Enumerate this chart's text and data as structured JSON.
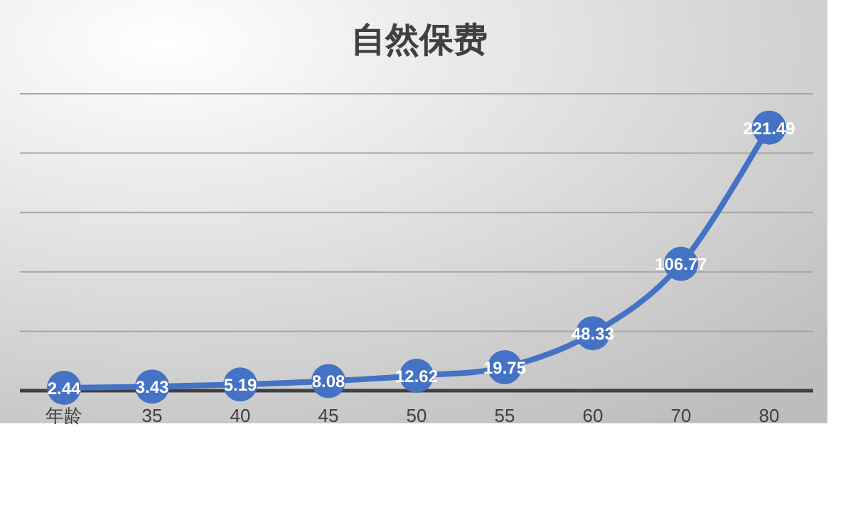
{
  "chart_data": {
    "type": "line",
    "title": "自然保费",
    "categories": [
      "年龄",
      "35",
      "40",
      "45",
      "50",
      "55",
      "60",
      "70",
      "80"
    ],
    "series": [
      {
        "color": "#4472c4",
        "values": [
          2.44,
          3.43,
          5.19,
          8.08,
          12.62,
          19.75,
          48.33,
          106.77,
          221.49
        ]
      }
    ],
    "ylim": [
      0,
      250
    ],
    "yticks": [
      {
        "value": 0,
        "label": null
      },
      {
        "value": 50,
        "label": null
      },
      {
        "value": 100,
        "label": null
      },
      {
        "value": 150,
        "label": null
      },
      {
        "value": 200,
        "label": null
      },
      {
        "value": 250,
        "label": null
      }
    ],
    "grid": "y",
    "tick_labels": "x",
    "data_labels": true,
    "marker": "circle",
    "line_style": "solid"
  }
}
